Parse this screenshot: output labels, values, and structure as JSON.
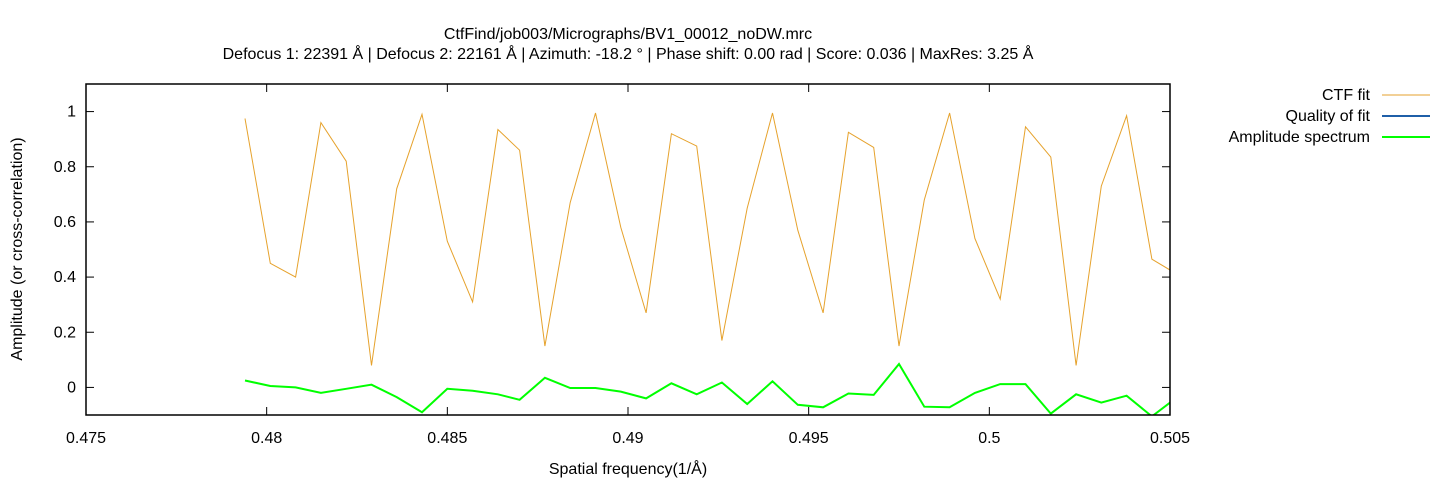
{
  "chart_data": {
    "type": "line",
    "title": "CtfFind/job003/Micrographs/BV1_00012_noDW.mrc",
    "subtitle": "Defocus 1: 22391 Å | Defocus 2: 22161 Å | Azimuth: -18.2 ° | Phase shift: 0.00 rad | Score: 0.036 | MaxRes: 3.25 Å",
    "xlabel": "Spatial frequency(1/Å)",
    "ylabel": "Amplitude (or cross-correlation)",
    "xlim": [
      0.475,
      0.505
    ],
    "ylim": [
      -0.1,
      1.1
    ],
    "xticks": [
      {
        "value": 0.475,
        "label": "0.475"
      },
      {
        "value": 0.48,
        "label": "0.48"
      },
      {
        "value": 0.485,
        "label": "0.485"
      },
      {
        "value": 0.49,
        "label": "0.49"
      },
      {
        "value": 0.495,
        "label": "0.495"
      },
      {
        "value": 0.5,
        "label": "0.5"
      },
      {
        "value": 0.505,
        "label": "0.505"
      }
    ],
    "yticks": [
      {
        "value": 0,
        "label": "0"
      },
      {
        "value": 0.2,
        "label": "0.2"
      },
      {
        "value": 0.4,
        "label": "0.4"
      },
      {
        "value": 0.6,
        "label": "0.6"
      },
      {
        "value": 0.8,
        "label": "0.8"
      },
      {
        "value": 1,
        "label": "1"
      }
    ],
    "legend_position": "outside-top-right",
    "series": [
      {
        "name": "CTF fit",
        "color": "#e6a22c",
        "stroke": "thin",
        "points": [
          [
            0.4794,
            0.975
          ],
          [
            0.4801,
            0.45
          ],
          [
            0.4808,
            0.4
          ],
          [
            0.4815,
            0.96
          ],
          [
            0.4822,
            0.82
          ],
          [
            0.4829,
            0.08
          ],
          [
            0.4836,
            0.72
          ],
          [
            0.4843,
            0.99
          ],
          [
            0.485,
            0.53
          ],
          [
            0.4857,
            0.31
          ],
          [
            0.4864,
            0.935
          ],
          [
            0.487,
            0.86
          ],
          [
            0.4877,
            0.15
          ],
          [
            0.4884,
            0.67
          ],
          [
            0.4891,
            0.995
          ],
          [
            0.4898,
            0.58
          ],
          [
            0.4905,
            0.27
          ],
          [
            0.4912,
            0.92
          ],
          [
            0.4919,
            0.875
          ],
          [
            0.4926,
            0.17
          ],
          [
            0.4933,
            0.65
          ],
          [
            0.494,
            0.995
          ],
          [
            0.4947,
            0.57
          ],
          [
            0.4954,
            0.27
          ],
          [
            0.4961,
            0.925
          ],
          [
            0.4968,
            0.87
          ],
          [
            0.4975,
            0.15
          ],
          [
            0.4982,
            0.68
          ],
          [
            0.4989,
            0.995
          ],
          [
            0.4996,
            0.54
          ],
          [
            0.5003,
            0.32
          ],
          [
            0.501,
            0.945
          ],
          [
            0.5017,
            0.835
          ],
          [
            0.5024,
            0.08
          ],
          [
            0.5031,
            0.73
          ],
          [
            0.5038,
            0.985
          ],
          [
            0.5045,
            0.465
          ],
          [
            0.5052,
            0.41
          ]
        ]
      },
      {
        "name": "Quality of fit",
        "color": "#1f5fa8",
        "stroke": "medium",
        "points": [
          [
            0.4968,
            -0.103
          ],
          [
            0.5017,
            -0.103
          ],
          [
            0.5038,
            -0.103
          ],
          [
            0.5045,
            -0.103
          ]
        ]
      },
      {
        "name": "Amplitude spectrum",
        "color": "#00ff00",
        "stroke": "medium",
        "points": [
          [
            0.4794,
            0.025
          ],
          [
            0.4801,
            0.005
          ],
          [
            0.4808,
            0.0
          ],
          [
            0.4815,
            -0.02
          ],
          [
            0.4822,
            -0.005
          ],
          [
            0.4829,
            0.01
          ],
          [
            0.4836,
            -0.035
          ],
          [
            0.4843,
            -0.09
          ],
          [
            0.485,
            -0.005
          ],
          [
            0.4857,
            -0.012
          ],
          [
            0.4864,
            -0.025
          ],
          [
            0.487,
            -0.045
          ],
          [
            0.4877,
            0.035
          ],
          [
            0.4884,
            -0.002
          ],
          [
            0.4891,
            -0.002
          ],
          [
            0.4898,
            -0.015
          ],
          [
            0.4905,
            -0.04
          ],
          [
            0.4912,
            0.015
          ],
          [
            0.4919,
            -0.025
          ],
          [
            0.4926,
            0.018
          ],
          [
            0.4933,
            -0.06
          ],
          [
            0.494,
            0.022
          ],
          [
            0.4947,
            -0.063
          ],
          [
            0.4954,
            -0.072
          ],
          [
            0.4961,
            -0.022
          ],
          [
            0.4968,
            -0.027
          ],
          [
            0.4975,
            0.085
          ],
          [
            0.4982,
            -0.07
          ],
          [
            0.4989,
            -0.072
          ],
          [
            0.4996,
            -0.02
          ],
          [
            0.5003,
            0.012
          ],
          [
            0.501,
            0.012
          ],
          [
            0.5017,
            -0.095
          ],
          [
            0.5024,
            -0.025
          ],
          [
            0.5031,
            -0.055
          ],
          [
            0.5038,
            -0.03
          ],
          [
            0.5045,
            -0.105
          ],
          [
            0.5052,
            -0.035
          ]
        ]
      }
    ]
  }
}
